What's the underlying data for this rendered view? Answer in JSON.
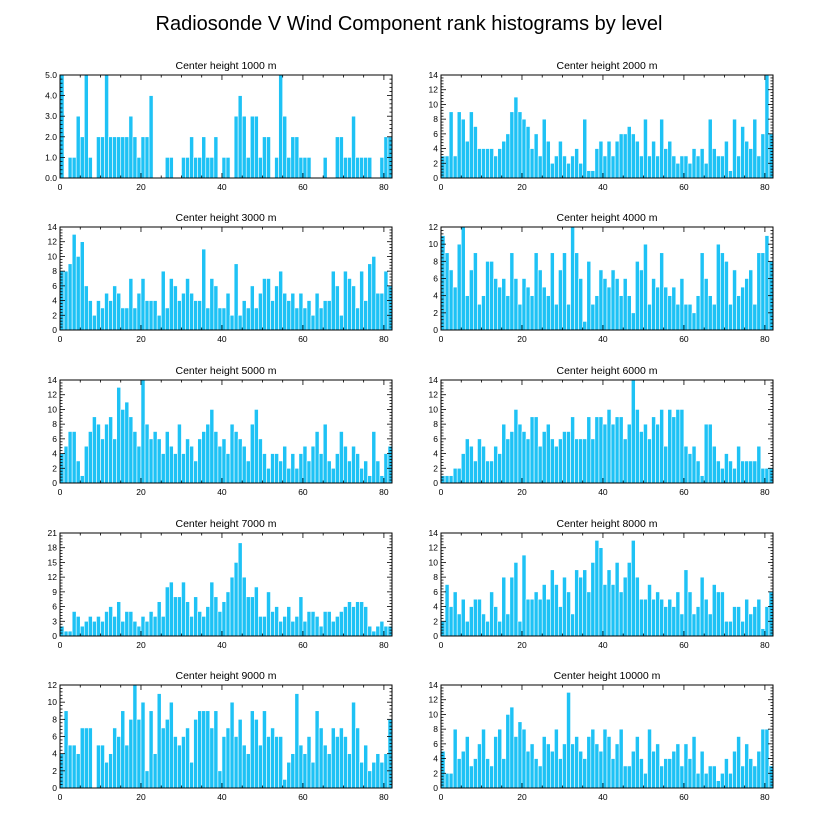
{
  "title": "Radiosonde V Wind Component rank histograms by level",
  "colors": {
    "bar": "#1ec2f5",
    "background": "#ffffff",
    "axis": "#000000"
  },
  "chart_data": [
    {
      "type": "bar",
      "title": "Center height 1000 m",
      "xlabel": "",
      "ylabel": "",
      "xlim": [
        0,
        82
      ],
      "ylim": [
        0,
        5
      ],
      "yticks": [
        "0.0",
        "1.0",
        "2.0",
        "3.0",
        "4.0",
        "5.0"
      ],
      "xticks": [
        "0",
        "20",
        "40",
        "60",
        "80"
      ],
      "values": [
        5,
        0,
        1,
        1,
        3,
        2,
        5,
        1,
        0,
        2,
        2,
        5,
        2,
        2,
        2,
        2,
        2,
        3,
        2,
        1,
        2,
        2,
        4,
        0,
        0,
        0,
        1,
        1,
        0,
        0,
        1,
        1,
        2,
        1,
        1,
        2,
        1,
        1,
        2,
        0,
        1,
        1,
        0,
        3,
        4,
        3,
        1,
        3,
        3,
        1,
        2,
        2,
        0,
        1,
        5,
        3,
        1,
        2,
        2,
        1,
        1,
        1,
        0,
        0,
        0,
        1,
        0,
        0,
        2,
        2,
        1,
        1,
        3,
        1,
        1,
        1,
        1,
        0,
        0,
        1,
        2,
        2
      ]
    },
    {
      "type": "bar",
      "title": "Center height 2000 m",
      "xlabel": "",
      "ylabel": "",
      "xlim": [
        0,
        82
      ],
      "ylim": [
        0,
        14
      ],
      "yticks": [
        "0",
        "2",
        "4",
        "6",
        "8",
        "10",
        "12",
        "14"
      ],
      "xticks": [
        "0",
        "20",
        "40",
        "60",
        "80"
      ],
      "values": [
        3,
        3,
        9,
        3,
        9,
        8,
        5,
        9,
        7,
        4,
        4,
        4,
        4,
        3,
        4,
        5,
        6,
        9,
        11,
        9,
        8,
        7,
        4,
        6,
        3,
        8,
        5,
        2,
        3,
        5,
        3,
        2,
        3,
        4,
        2,
        8,
        1,
        1,
        4,
        5,
        3,
        5,
        3,
        5,
        6,
        6,
        7,
        6,
        5,
        3,
        8,
        3,
        5,
        3,
        8,
        4,
        5,
        3,
        2,
        3,
        3,
        2,
        4,
        3,
        4,
        2,
        8,
        4,
        3,
        3,
        5,
        1,
        8,
        3,
        7,
        5,
        4,
        8,
        3,
        6,
        14,
        6
      ]
    },
    {
      "type": "bar",
      "title": "Center height 3000 m",
      "xlabel": "",
      "ylabel": "",
      "xlim": [
        0,
        82
      ],
      "ylim": [
        0,
        14
      ],
      "yticks": [
        "0",
        "2",
        "4",
        "6",
        "8",
        "10",
        "12",
        "14"
      ],
      "xticks": [
        "0",
        "20",
        "40",
        "60",
        "80"
      ],
      "values": [
        8,
        8,
        9,
        13,
        10,
        12,
        6,
        4,
        2,
        4,
        3,
        5,
        4,
        6,
        5,
        3,
        3,
        7,
        3,
        5,
        7,
        4,
        4,
        4,
        2,
        8,
        3,
        7,
        6,
        4,
        5,
        7,
        5,
        4,
        4,
        11,
        3,
        7,
        6,
        3,
        3,
        5,
        2,
        9,
        2,
        4,
        3,
        6,
        3,
        5,
        7,
        7,
        4,
        6,
        8,
        5,
        4,
        5,
        3,
        5,
        3,
        4,
        2,
        5,
        3,
        4,
        4,
        8,
        6,
        2,
        8,
        7,
        6,
        3,
        8,
        4,
        9,
        10,
        5,
        5,
        8,
        6
      ]
    },
    {
      "type": "bar",
      "title": "Center height 4000 m",
      "xlabel": "",
      "ylabel": "",
      "xlim": [
        0,
        82
      ],
      "ylim": [
        0,
        12
      ],
      "yticks": [
        "0",
        "2",
        "4",
        "6",
        "8",
        "10",
        "12"
      ],
      "xticks": [
        "0",
        "20",
        "40",
        "60",
        "80"
      ],
      "values": [
        11,
        9,
        7,
        5,
        10,
        12,
        4,
        7,
        9,
        3,
        4,
        8,
        8,
        6,
        5,
        6,
        4,
        9,
        6,
        3,
        6,
        5,
        4,
        9,
        7,
        5,
        4,
        9,
        3,
        7,
        9,
        3,
        12,
        9,
        6,
        1,
        8,
        3,
        4,
        7,
        6,
        5,
        7,
        6,
        4,
        6,
        4,
        2,
        8,
        7,
        10,
        3,
        6,
        5,
        9,
        5,
        4,
        5,
        3,
        6,
        3,
        3,
        2,
        4,
        9,
        6,
        4,
        3,
        10,
        9,
        8,
        3,
        7,
        4,
        5,
        6,
        7,
        3,
        9,
        9,
        11,
        8
      ]
    },
    {
      "type": "bar",
      "title": "Center height 5000 m",
      "xlabel": "",
      "ylabel": "",
      "xlim": [
        0,
        82
      ],
      "ylim": [
        0,
        14
      ],
      "yticks": [
        "0",
        "2",
        "4",
        "6",
        "8",
        "10",
        "12",
        "14"
      ],
      "xticks": [
        "0",
        "20",
        "40",
        "60",
        "80"
      ],
      "values": [
        4,
        5,
        7,
        7,
        3,
        1,
        5,
        7,
        9,
        8,
        6,
        8,
        9,
        6,
        13,
        10,
        11,
        9,
        7,
        5,
        14,
        8,
        6,
        7,
        6,
        4,
        7,
        5,
        4,
        8,
        4,
        6,
        5,
        3,
        6,
        7,
        8,
        10,
        7,
        5,
        6,
        4,
        8,
        7,
        6,
        5,
        3,
        8,
        10,
        6,
        4,
        2,
        4,
        4,
        3,
        5,
        2,
        4,
        2,
        4,
        5,
        3,
        5,
        7,
        4,
        8,
        3,
        2,
        4,
        7,
        5,
        3,
        5,
        4,
        2,
        3,
        1,
        7,
        3,
        1,
        4,
        5
      ]
    },
    {
      "type": "bar",
      "title": "Center height 6000 m",
      "xlabel": "",
      "ylabel": "",
      "xlim": [
        0,
        82
      ],
      "ylim": [
        0,
        14
      ],
      "yticks": [
        "0",
        "2",
        "4",
        "6",
        "8",
        "10",
        "12",
        "14"
      ],
      "xticks": [
        "0",
        "20",
        "40",
        "60",
        "80"
      ],
      "values": [
        1,
        1,
        1,
        2,
        2,
        4,
        6,
        5,
        3,
        6,
        5,
        3,
        3,
        5,
        4,
        8,
        6,
        7,
        10,
        8,
        7,
        6,
        9,
        9,
        5,
        7,
        8,
        6,
        5,
        6,
        7,
        7,
        9,
        6,
        6,
        6,
        9,
        6,
        9,
        9,
        8,
        10,
        8,
        9,
        9,
        6,
        8,
        14,
        10,
        7,
        8,
        6,
        9,
        8,
        10,
        5,
        10,
        9,
        10,
        10,
        5,
        4,
        5,
        3,
        1,
        8,
        8,
        5,
        3,
        2,
        4,
        3,
        2,
        5,
        3,
        3,
        3,
        3,
        5,
        2,
        2,
        2
      ]
    },
    {
      "type": "bar",
      "title": "Center height 7000 m",
      "xlabel": "",
      "ylabel": "",
      "xlim": [
        0,
        82
      ],
      "ylim": [
        0,
        21
      ],
      "yticks": [
        "0",
        "3",
        "6",
        "9",
        "12",
        "15",
        "18",
        "21"
      ],
      "xticks": [
        "0",
        "20",
        "40",
        "60",
        "80"
      ],
      "values": [
        2,
        1,
        1,
        5,
        4,
        2,
        3,
        4,
        3,
        4,
        3,
        5,
        6,
        4,
        7,
        3,
        5,
        5,
        3,
        2,
        4,
        3,
        5,
        4,
        7,
        4,
        10,
        11,
        8,
        8,
        11,
        7,
        4,
        8,
        5,
        4,
        6,
        11,
        8,
        5,
        7,
        9,
        12,
        15,
        19,
        12,
        8,
        8,
        10,
        4,
        4,
        9,
        5,
        6,
        3,
        4,
        6,
        3,
        4,
        8,
        3,
        5,
        5,
        4,
        2,
        5,
        5,
        3,
        4,
        5,
        6,
        7,
        6,
        7,
        7,
        6,
        2,
        1,
        2,
        3,
        2,
        2
      ]
    },
    {
      "type": "bar",
      "title": "Center height 8000 m",
      "xlabel": "",
      "ylabel": "",
      "xlim": [
        0,
        82
      ],
      "ylim": [
        0,
        14
      ],
      "yticks": [
        "0",
        "2",
        "4",
        "6",
        "8",
        "10",
        "12",
        "14"
      ],
      "xticks": [
        "0",
        "20",
        "40",
        "60",
        "80"
      ],
      "values": [
        2,
        7,
        4,
        6,
        3,
        5,
        2,
        4,
        5,
        5,
        3,
        2,
        6,
        4,
        2,
        8,
        3,
        8,
        10,
        2,
        11,
        5,
        5,
        6,
        5,
        7,
        5,
        9,
        7,
        4,
        8,
        6,
        3,
        9,
        8,
        9,
        6,
        10,
        13,
        12,
        7,
        9,
        7,
        10,
        6,
        8,
        10,
        13,
        8,
        5,
        5,
        7,
        5,
        6,
        5,
        4,
        5,
        4,
        6,
        3,
        9,
        6,
        3,
        4,
        8,
        5,
        3,
        7,
        6,
        6,
        2,
        2,
        4,
        4,
        2,
        5,
        3,
        4,
        5,
        1,
        4,
        6
      ]
    },
    {
      "type": "bar",
      "title": "Center height 9000 m",
      "xlabel": "",
      "ylabel": "",
      "xlim": [
        0,
        82
      ],
      "ylim": [
        0,
        12
      ],
      "yticks": [
        "0",
        "2",
        "4",
        "6",
        "8",
        "10",
        "12"
      ],
      "xticks": [
        "0",
        "20",
        "40",
        "60",
        "80"
      ],
      "values": [
        4,
        9,
        5,
        5,
        4,
        7,
        7,
        7,
        0,
        5,
        5,
        3,
        4,
        7,
        6,
        9,
        5,
        8,
        12,
        8,
        10,
        2,
        9,
        4,
        11,
        7,
        8,
        10,
        6,
        5,
        6,
        7,
        3,
        8,
        9,
        9,
        9,
        7,
        9,
        2,
        6,
        7,
        10,
        6,
        8,
        5,
        4,
        9,
        8,
        5,
        9,
        6,
        7,
        6,
        6,
        1,
        3,
        4,
        11,
        5,
        4,
        6,
        3,
        9,
        7,
        5,
        4,
        7,
        6,
        7,
        6,
        4,
        10,
        7,
        3,
        5,
        2,
        3,
        4,
        3,
        4,
        8
      ]
    },
    {
      "type": "bar",
      "title": "Center height 10000 m",
      "xlabel": "",
      "ylabel": "",
      "xlim": [
        0,
        82
      ],
      "ylim": [
        0,
        14
      ],
      "yticks": [
        "0",
        "2",
        "4",
        "6",
        "8",
        "10",
        "12",
        "14"
      ],
      "xticks": [
        "0",
        "20",
        "40",
        "60",
        "80"
      ],
      "values": [
        5,
        2,
        2,
        8,
        4,
        5,
        7,
        3,
        4,
        6,
        8,
        4,
        3,
        7,
        8,
        4,
        10,
        11,
        7,
        9,
        8,
        5,
        6,
        4,
        3,
        7,
        6,
        5,
        8,
        4,
        6,
        13,
        6,
        7,
        5,
        4,
        7,
        8,
        6,
        5,
        8,
        7,
        4,
        6,
        8,
        3,
        3,
        5,
        7,
        4,
        2,
        8,
        5,
        6,
        3,
        4,
        4,
        5,
        6,
        3,
        6,
        4,
        7,
        2,
        5,
        2,
        3,
        3,
        1,
        2,
        4,
        2,
        5,
        7,
        3,
        6,
        4,
        3,
        5,
        8,
        8,
        3
      ]
    }
  ]
}
